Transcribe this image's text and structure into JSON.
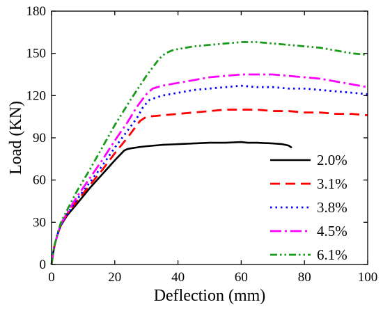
{
  "chart_data": {
    "type": "line",
    "title": "",
    "xlabel": "Deflection  (mm)",
    "ylabel": "Load (KN)",
    "xlim": [
      0,
      100
    ],
    "ylim": [
      0,
      180
    ],
    "xticks": [
      0,
      20,
      40,
      60,
      80,
      100
    ],
    "yticks": [
      0,
      30,
      60,
      90,
      120,
      150,
      180
    ],
    "grid": false,
    "legend_position": "bottom-right",
    "series": [
      {
        "name": "2.0%",
        "color": "#000000",
        "dash": "solid",
        "x": [
          0,
          0.5,
          1,
          2,
          3,
          5,
          8,
          12,
          16,
          20,
          23,
          24,
          25,
          28,
          30,
          35,
          40,
          45,
          50,
          55,
          60,
          62,
          65,
          70,
          73,
          75,
          76
        ],
        "y": [
          0,
          8,
          14,
          22,
          28,
          35,
          43,
          54,
          64,
          74,
          81,
          82,
          82.5,
          83.5,
          84,
          85,
          85.5,
          86,
          86.5,
          86.5,
          87,
          86.5,
          86.5,
          86,
          85.5,
          84.5,
          83
        ]
      },
      {
        "name": "3.1%",
        "color": "#ff0000",
        "dash": "long-dash",
        "x": [
          0,
          0.5,
          1,
          2,
          3,
          5,
          8,
          12,
          16,
          20,
          24,
          26,
          28,
          30,
          35,
          40,
          45,
          50,
          55,
          60,
          65,
          70,
          75,
          80,
          85,
          90,
          95,
          100
        ],
        "y": [
          0,
          8,
          14,
          22,
          28,
          36,
          45,
          56,
          67,
          79,
          90,
          96,
          102,
          105,
          106,
          107,
          108,
          109,
          110,
          110,
          110,
          109,
          109,
          108,
          108,
          107,
          107,
          106
        ]
      },
      {
        "name": "3.8%",
        "color": "#0000ff",
        "dash": "dot",
        "x": [
          0,
          0.5,
          1,
          2,
          3,
          5,
          8,
          12,
          16,
          20,
          24,
          27,
          29,
          31,
          35,
          40,
          45,
          50,
          55,
          60,
          65,
          70,
          75,
          80,
          85,
          90,
          95,
          100
        ],
        "y": [
          0,
          8,
          14,
          22,
          28,
          36,
          46,
          58,
          70,
          83,
          95,
          104,
          112,
          117,
          120,
          122,
          124,
          125,
          126,
          127,
          126,
          126,
          125,
          125,
          124,
          123,
          122,
          121
        ]
      },
      {
        "name": "4.5%",
        "color": "#ff00ff",
        "dash": "dash-dot",
        "x": [
          0,
          0.5,
          1,
          2,
          3,
          5,
          8,
          12,
          16,
          20,
          24,
          27,
          30,
          32,
          35,
          40,
          45,
          50,
          55,
          60,
          65,
          70,
          75,
          80,
          85,
          90,
          95,
          100
        ],
        "y": [
          0,
          8,
          14,
          22,
          29,
          37,
          48,
          61,
          74,
          88,
          101,
          112,
          121,
          125,
          127,
          129,
          131,
          133,
          134,
          135,
          135,
          135,
          134,
          133,
          132,
          130,
          128,
          126
        ]
      },
      {
        "name": "6.1%",
        "color": "#1a9a1a",
        "dash": "dash-dot-dot",
        "x": [
          0,
          0.5,
          1,
          2,
          3,
          5,
          8,
          12,
          16,
          20,
          25,
          30,
          34,
          36,
          38,
          40,
          45,
          50,
          55,
          60,
          65,
          70,
          75,
          80,
          85,
          90,
          95,
          100
        ],
        "y": [
          0,
          8,
          14,
          23,
          30,
          39,
          52,
          67,
          83,
          99,
          117,
          134,
          146,
          150,
          152,
          153,
          155,
          156,
          157,
          158,
          158,
          157,
          156,
          155,
          154,
          152,
          150,
          149
        ]
      }
    ]
  }
}
